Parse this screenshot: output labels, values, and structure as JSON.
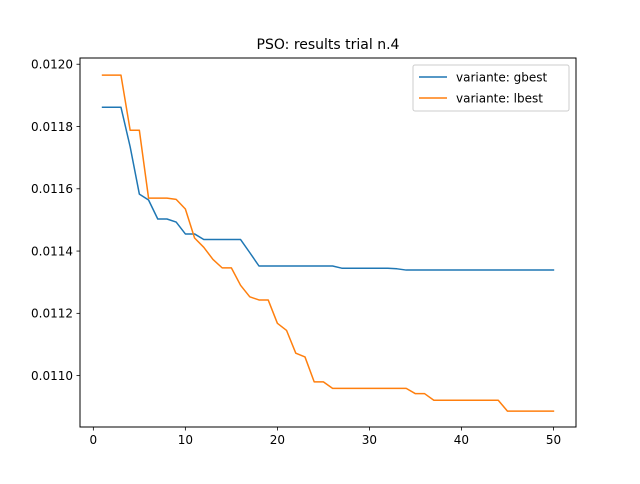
{
  "chart_data": {
    "type": "line",
    "title": "PSO: results trial n.4",
    "xlabel": "",
    "ylabel": "",
    "xlim": [
      -1.45,
      52.45
    ],
    "ylim": [
      0.010835,
      0.01202
    ],
    "xticks": [
      0,
      10,
      20,
      30,
      40,
      50
    ],
    "xtick_labels": [
      "0",
      "10",
      "20",
      "30",
      "40",
      "50"
    ],
    "yticks": [
      0.011,
      0.0112,
      0.0114,
      0.0116,
      0.0118,
      0.012
    ],
    "ytick_labels": [
      "0.0110",
      "0.0112",
      "0.0114",
      "0.0116",
      "0.0118",
      "0.0120"
    ],
    "grid": false,
    "legend_position": "top-right",
    "x": [
      1,
      2,
      3,
      4,
      5,
      6,
      7,
      8,
      9,
      10,
      11,
      12,
      13,
      14,
      15,
      16,
      17,
      18,
      19,
      20,
      21,
      22,
      23,
      24,
      25,
      26,
      27,
      28,
      29,
      30,
      31,
      32,
      33,
      34,
      35,
      36,
      37,
      38,
      39,
      40,
      41,
      42,
      43,
      44,
      45,
      46,
      47,
      48,
      49,
      50
    ],
    "series": [
      {
        "name": "variante: gbest",
        "color": "#1f77b4",
        "values": [
          0.011862,
          0.011862,
          0.011862,
          0.011735,
          0.011583,
          0.011564,
          0.011503,
          0.011503,
          0.011493,
          0.011455,
          0.011455,
          0.011437,
          0.011437,
          0.011437,
          0.011437,
          0.011437,
          0.011395,
          0.011352,
          0.011352,
          0.011352,
          0.011352,
          0.011352,
          0.011352,
          0.011352,
          0.011352,
          0.011352,
          0.011345,
          0.011345,
          0.011345,
          0.011345,
          0.011345,
          0.011345,
          0.011343,
          0.011339,
          0.011339,
          0.011339,
          0.011339,
          0.011339,
          0.011339,
          0.011339,
          0.011339,
          0.011339,
          0.011339,
          0.011339,
          0.011339,
          0.011339,
          0.011339,
          0.011339,
          0.011339,
          0.011339
        ]
      },
      {
        "name": "variante: lbest",
        "color": "#ff7f0e",
        "values": [
          0.011965,
          0.011965,
          0.011965,
          0.011788,
          0.011788,
          0.01157,
          0.01157,
          0.01157,
          0.011566,
          0.011535,
          0.011442,
          0.011412,
          0.011373,
          0.011346,
          0.011346,
          0.01129,
          0.011253,
          0.011243,
          0.011243,
          0.011168,
          0.011145,
          0.011072,
          0.01106,
          0.01098,
          0.01098,
          0.010959,
          0.010959,
          0.010959,
          0.010959,
          0.010959,
          0.010959,
          0.010959,
          0.010959,
          0.010959,
          0.010942,
          0.010942,
          0.010921,
          0.010921,
          0.010921,
          0.010921,
          0.010921,
          0.010921,
          0.010921,
          0.010921,
          0.010886,
          0.010886,
          0.010886,
          0.010886,
          0.010886,
          0.010886
        ]
      }
    ]
  }
}
